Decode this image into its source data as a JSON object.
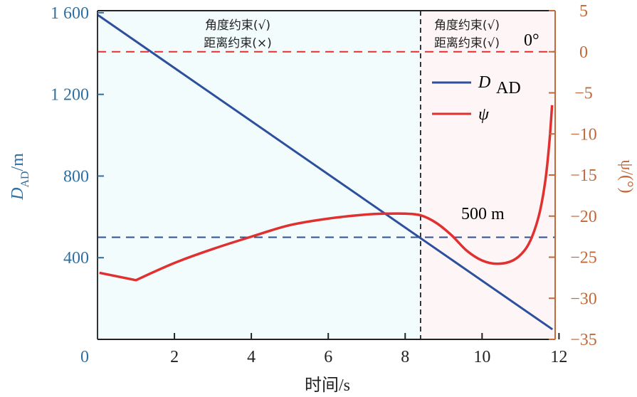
{
  "chart_data": {
    "type": "line",
    "xlabel": "时间/s",
    "ylabel_left": {
      "main": "D",
      "sub": "AD",
      "unit": "/m"
    },
    "ylabel_right": "ψ/(°)",
    "xlim": [
      0,
      11.9
    ],
    "ylim_left": [
      0,
      1610
    ],
    "ylim_right": [
      -35,
      5
    ],
    "x_ticks": [
      0,
      2,
      4,
      6,
      8,
      10,
      12
    ],
    "x_tick_labels": [
      "2",
      "4",
      "6",
      "8",
      "10",
      "12"
    ],
    "y_left_ticks": [
      0,
      400,
      800,
      1200,
      1600
    ],
    "y_left_tick_labels": [
      "0",
      "400",
      "800",
      "1 200",
      "1 600"
    ],
    "y_right_ticks": [
      5,
      0,
      -5,
      -10,
      -15,
      -20,
      -25,
      -30,
      -35
    ],
    "y_right_tick_labels": [
      "5",
      "0",
      "−5",
      "−10",
      "−15",
      "−20",
      "−25",
      "−30",
      "−35"
    ],
    "grid": false,
    "legend_placement": "top-right",
    "colors": {
      "left_axis": "#2e6fa0",
      "right_axis": "#c0693a",
      "D_AD": "#2c4f9e",
      "psi": "#e03030",
      "region1_bg": "#f3fcfd",
      "region2_bg": "#fdf5f6"
    },
    "series": [
      {
        "name": "D_AD",
        "legend_main": "D",
        "legend_sub": "AD",
        "axis": "left",
        "x": [
          0,
          11.83
        ],
        "y": [
          1590,
          49
        ]
      },
      {
        "name": "ψ",
        "legend_main": "ψ",
        "axis": "right",
        "x": [
          0.05,
          1,
          2,
          3,
          4,
          5,
          6,
          7,
          7.5,
          8,
          8.4,
          8.8,
          9.2,
          9.6,
          10,
          10.4,
          10.8,
          11.1,
          11.3,
          11.5,
          11.65,
          11.75,
          11.82
        ],
        "y": [
          -26.9,
          -27.8,
          -25.7,
          -24.0,
          -22.5,
          -21.1,
          -20.3,
          -19.8,
          -19.7,
          -19.7,
          -19.9,
          -20.8,
          -22.3,
          -24.2,
          -25.4,
          -25.8,
          -25.4,
          -24.2,
          -22.5,
          -19.5,
          -15.5,
          -11,
          -6.5
        ]
      }
    ],
    "reference_lines": [
      {
        "type": "horizontal",
        "axis": "left",
        "value": 500,
        "label": "500 m",
        "color": "#2c4f9e"
      },
      {
        "type": "horizontal",
        "axis": "right",
        "value": 0,
        "label": "0°",
        "color": "#e03030"
      },
      {
        "type": "vertical",
        "value": 8.4,
        "color": "#222222"
      }
    ],
    "annotations": {
      "region1": [
        "角度约束(√)",
        "距离约束(×)"
      ],
      "region2": [
        "角度约束(√)",
        "距离约束(√)"
      ]
    }
  }
}
